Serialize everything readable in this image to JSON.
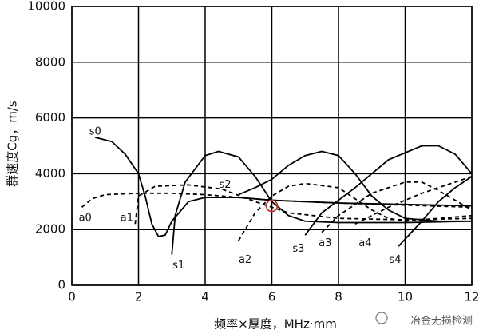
{
  "chart_data": {
    "type": "line",
    "xlabel": "频率×厚度，MHz·mm",
    "ylabel": "群速度Cg，m/s",
    "xlim": [
      0,
      12
    ],
    "xticks": [
      0,
      2,
      4,
      6,
      8,
      10,
      12
    ],
    "ylim": [
      0,
      10000
    ],
    "yticks": [
      0,
      2000,
      4000,
      6000,
      8000,
      10000
    ],
    "grid": true,
    "marker": {
      "x": 6,
      "y": 2850,
      "color": "#c0392b"
    },
    "watermark": "冶金无损检测",
    "series": [
      {
        "name": "s0",
        "color": "#000000",
        "style": "solid",
        "x": [
          0.7,
          1.2,
          1.6,
          2,
          2.2,
          2.4,
          2.6,
          2.8,
          3,
          3.5,
          4,
          5,
          6,
          7,
          8,
          10,
          12
        ],
        "values": [
          5300,
          5150,
          4700,
          4000,
          3200,
          2200,
          1750,
          1800,
          2300,
          3000,
          3150,
          3150,
          3050,
          3000,
          2950,
          2900,
          2850
        ]
      },
      {
        "name": "a0",
        "color": "#000000",
        "style": "dashed",
        "x": [
          0.3,
          0.6,
          1,
          2,
          3,
          4,
          5,
          6,
          8,
          12
        ],
        "values": [
          2800,
          3100,
          3250,
          3300,
          3300,
          3250,
          3150,
          3050,
          2950,
          2800
        ]
      },
      {
        "name": "a1",
        "color": "#000000",
        "style": "dashed",
        "x": [
          1.9,
          2,
          2.5,
          3.5,
          4.5,
          5.5,
          6.5,
          8,
          10,
          12
        ],
        "values": [
          2200,
          3200,
          3550,
          3600,
          3450,
          3000,
          2600,
          2400,
          2350,
          2400
        ]
      },
      {
        "name": "s1",
        "color": "#000000",
        "style": "solid",
        "x": [
          3,
          3.1,
          3.4,
          4,
          4.4,
          5,
          5.5,
          6,
          6.5,
          7,
          8,
          10,
          12
        ],
        "values": [
          1100,
          2500,
          3700,
          4650,
          4800,
          4600,
          3900,
          3000,
          2500,
          2300,
          2250,
          2250,
          2300
        ]
      },
      {
        "name": "s2",
        "color": "#000000",
        "style": "solid",
        "x": [
          5,
          5.5,
          6,
          6.5,
          7,
          7.5,
          8,
          8.5,
          9,
          9.5,
          10,
          11,
          12
        ],
        "values": [
          3250,
          3500,
          3800,
          4300,
          4650,
          4800,
          4650,
          4000,
          3200,
          2700,
          2400,
          2300,
          2300
        ]
      },
      {
        "name": "a2",
        "color": "#000000",
        "style": "dashed",
        "x": [
          5,
          5.5,
          6,
          6.5,
          7,
          8,
          8.5,
          9,
          9.5,
          10,
          12
        ],
        "values": [
          1600,
          2600,
          3200,
          3550,
          3650,
          3500,
          3100,
          2700,
          2400,
          2300,
          2500
        ]
      },
      {
        "name": "s3",
        "color": "#000000",
        "style": "solid",
        "x": [
          7,
          7.5,
          8.5,
          9.5,
          10.5,
          11,
          11.5,
          12
        ],
        "values": [
          1800,
          2600,
          3500,
          4500,
          5000,
          5000,
          4700,
          4000
        ]
      },
      {
        "name": "a3",
        "color": "#000000",
        "style": "dashed",
        "x": [
          7.5,
          8,
          9,
          10,
          10.5,
          11,
          12
        ],
        "values": [
          1900,
          2500,
          3300,
          3700,
          3700,
          3400,
          2700
        ]
      },
      {
        "name": "a4",
        "color": "#000000",
        "style": "dashed",
        "x": [
          8.5,
          9.5,
          10.5,
          12
        ],
        "values": [
          2200,
          2800,
          3300,
          3900
        ]
      },
      {
        "name": "s4",
        "color": "#000000",
        "style": "solid",
        "x": [
          9.8,
          10.5,
          11,
          11.5,
          12
        ],
        "values": [
          1400,
          2300,
          3000,
          3500,
          3900
        ]
      }
    ]
  }
}
